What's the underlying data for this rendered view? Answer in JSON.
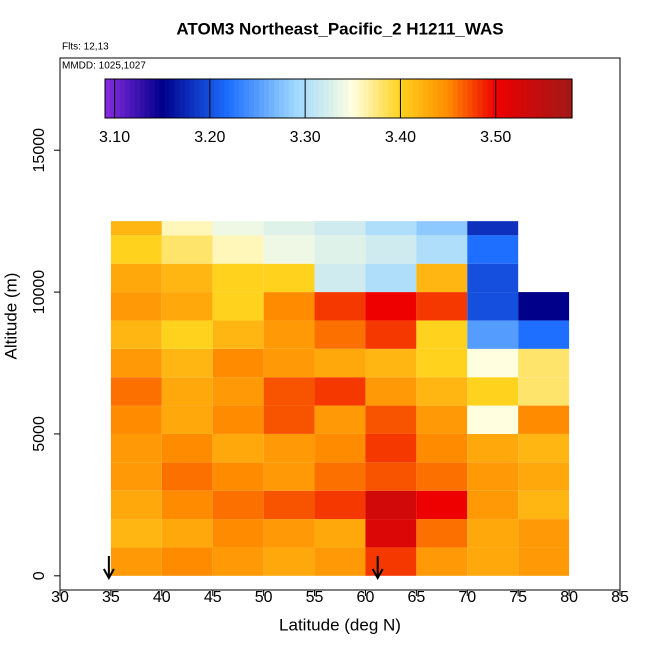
{
  "chart_data": {
    "type": "heatmap",
    "title": "ATOM3 Northeast_Pacific_2 H1211_WAS",
    "flights_note": "Flts: 12,13",
    "dates_note": "MMDD: 1025,1027",
    "x_label": "Latitude (deg N)",
    "y_label": "Altitude (m)",
    "xlim": [
      30,
      85
    ],
    "ylim": [
      -500,
      18250
    ],
    "xticks": [
      30,
      35,
      40,
      45,
      50,
      55,
      60,
      65,
      70,
      75,
      80,
      85
    ],
    "yticks": [
      0,
      5000,
      10000,
      15000
    ],
    "x_bins": [
      35,
      40,
      45,
      50,
      55,
      60,
      65,
      70,
      75,
      80
    ],
    "y_bins": [
      0,
      1000,
      2000,
      3000,
      4000,
      5000,
      6000,
      7000,
      8000,
      9000,
      10000,
      11000,
      12000,
      12500
    ],
    "z": [
      [
        3.44,
        3.45,
        3.44,
        3.43,
        3.44,
        3.48,
        3.44,
        3.43,
        3.44
      ],
      [
        3.42,
        3.43,
        3.45,
        3.44,
        3.43,
        3.52,
        3.46,
        3.43,
        3.44
      ],
      [
        3.43,
        3.45,
        3.46,
        3.47,
        3.48,
        3.53,
        3.5,
        3.44,
        3.42
      ],
      [
        3.44,
        3.46,
        3.45,
        3.44,
        3.46,
        3.47,
        3.46,
        3.44,
        3.43
      ],
      [
        3.44,
        3.45,
        3.43,
        3.44,
        3.45,
        3.48,
        3.45,
        3.43,
        3.42
      ],
      [
        3.45,
        3.43,
        3.45,
        3.47,
        3.44,
        3.47,
        3.44,
        3.35,
        3.45
      ],
      [
        3.46,
        3.43,
        3.44,
        3.47,
        3.48,
        3.44,
        3.42,
        3.4,
        3.38
      ],
      [
        3.44,
        3.42,
        3.45,
        3.44,
        3.43,
        3.42,
        3.4,
        3.35,
        3.38
      ],
      [
        3.42,
        3.4,
        3.42,
        3.44,
        3.46,
        3.48,
        3.4,
        3.25,
        3.22
      ],
      [
        3.44,
        3.43,
        3.4,
        3.45,
        3.48,
        3.5,
        3.48,
        3.2,
        3.15
      ],
      [
        3.43,
        3.42,
        3.4,
        3.4,
        3.32,
        3.3,
        3.42,
        3.2,
        null
      ],
      [
        3.4,
        3.38,
        3.36,
        3.34,
        3.33,
        3.32,
        3.3,
        3.22,
        null
      ],
      [
        3.42,
        3.36,
        3.34,
        3.33,
        3.32,
        3.3,
        3.28,
        3.18,
        null
      ]
    ],
    "clim": [
      3.09,
      3.58
    ],
    "colorbar_ticks": [
      {
        "value": 3.1,
        "label": "3.10"
      },
      {
        "value": 3.2,
        "label": "3.20"
      },
      {
        "value": 3.3,
        "label": "3.30"
      },
      {
        "value": 3.4,
        "label": "3.40"
      },
      {
        "value": 3.5,
        "label": "3.50"
      }
    ],
    "colorscale": [
      [
        3.09,
        "#8a2be2"
      ],
      [
        3.15,
        "#00008b"
      ],
      [
        3.22,
        "#1e6fff"
      ],
      [
        3.29,
        "#9fd8ff"
      ],
      [
        3.35,
        "#ffffe0"
      ],
      [
        3.4,
        "#ffd21e"
      ],
      [
        3.45,
        "#ff8c00"
      ],
      [
        3.5,
        "#ee0000"
      ],
      [
        3.58,
        "#a01818"
      ]
    ],
    "arrows": [
      34.8,
      61.2
    ]
  }
}
